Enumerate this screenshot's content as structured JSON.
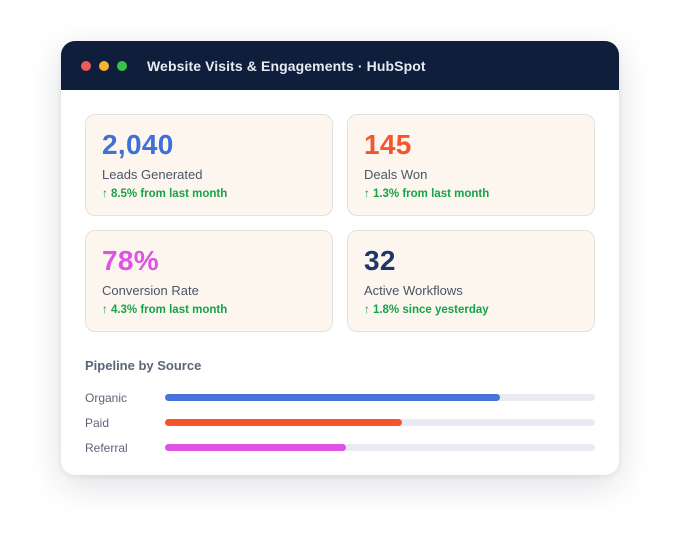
{
  "window": {
    "title": "Website Visits & Engagements · HubSpot",
    "dots": [
      "#f25a5a",
      "#f5b531",
      "#34c44b"
    ]
  },
  "stats": [
    {
      "value": "2,040",
      "label": "Leads Generated",
      "change": "↑ 8.5% from last month",
      "color": "#3f6fd8"
    },
    {
      "value": "145",
      "label": "Deals Won",
      "change": "↑ 1.3% from last month",
      "color": "#f4552e"
    },
    {
      "value": "78%",
      "label": "Conversion Rate",
      "change": "↑ 4.3% from last month",
      "color": "#e052e6"
    },
    {
      "value": "32",
      "label": "Active Workflows",
      "change": "↑ 1.8% since yesterday",
      "color": "#1c3768"
    }
  ],
  "pipeline": {
    "title": "Pipeline by Source",
    "sources": [
      {
        "label": "Organic",
        "fraction": 0.78,
        "color": "#4673d9"
      },
      {
        "label": "Paid",
        "fraction": 0.55,
        "color": "#f4552e"
      },
      {
        "label": "Referral",
        "fraction": 0.42,
        "color": "#e052e6"
      }
    ]
  }
}
